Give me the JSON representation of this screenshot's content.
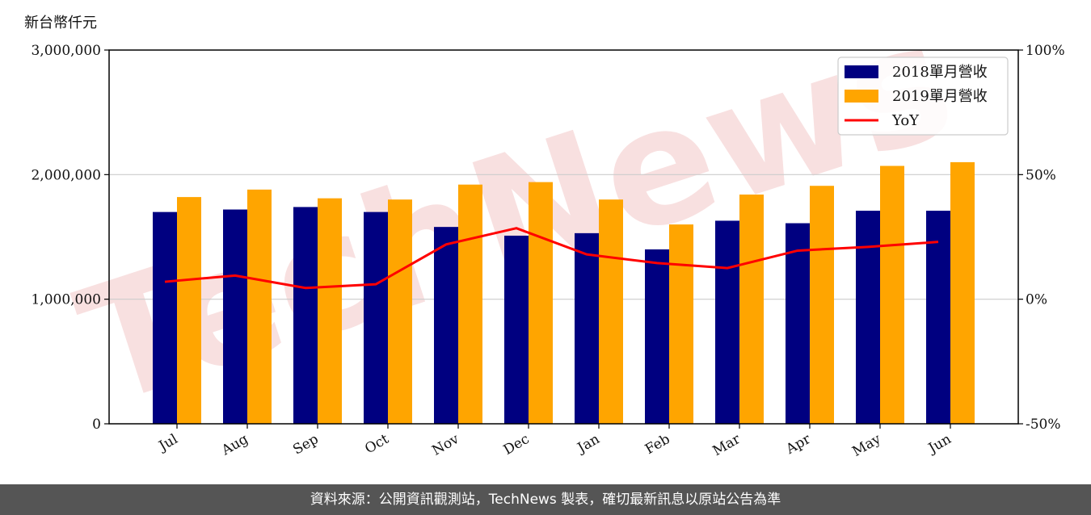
{
  "unit_label": "新台幣仟元",
  "watermark": "TechNews",
  "footer": "資料來源：公開資訊觀測站，TechNews 製表，確切最新訊息以原站公告為準",
  "colors": {
    "series2018": "#000080",
    "series2019": "#FFA500",
    "yoy": "#FF0000",
    "grid": "#cccccc",
    "watermark": "#f5d5d5"
  },
  "chart_data": {
    "type": "bar",
    "categories": [
      "Jul",
      "Aug",
      "Sep",
      "Oct",
      "Nov",
      "Dec",
      "Jan",
      "Feb",
      "Mar",
      "Apr",
      "May",
      "Jun"
    ],
    "series": [
      {
        "name": "2018單月營收",
        "type": "bar",
        "axis": "left",
        "values": [
          1700000,
          1720000,
          1740000,
          1700000,
          1580000,
          1510000,
          1530000,
          1400000,
          1630000,
          1610000,
          1710000,
          1710000
        ]
      },
      {
        "name": "2019單月營收",
        "type": "bar",
        "axis": "left",
        "values": [
          1820000,
          1880000,
          1810000,
          1800000,
          1920000,
          1940000,
          1800000,
          1600000,
          1840000,
          1910000,
          2070000,
          2100000
        ]
      },
      {
        "name": "YoY",
        "type": "line",
        "axis": "right",
        "values": [
          7,
          9.5,
          4.5,
          6,
          22,
          28.5,
          18,
          14.5,
          12.5,
          19.5,
          21,
          23
        ]
      }
    ],
    "yleft": {
      "ylim": [
        0,
        3000000
      ],
      "ticks": [
        0,
        1000000,
        2000000,
        3000000
      ],
      "tick_labels": [
        "0",
        "1,000,000",
        "2,000,000",
        "3,000,000"
      ]
    },
    "yright": {
      "ylim": [
        -50,
        100
      ],
      "ticks": [
        -50,
        0,
        50,
        100
      ],
      "tick_labels": [
        "-50%",
        "0%",
        "50%",
        "100%"
      ]
    },
    "grid": "horizontal",
    "legend": "top-right"
  }
}
